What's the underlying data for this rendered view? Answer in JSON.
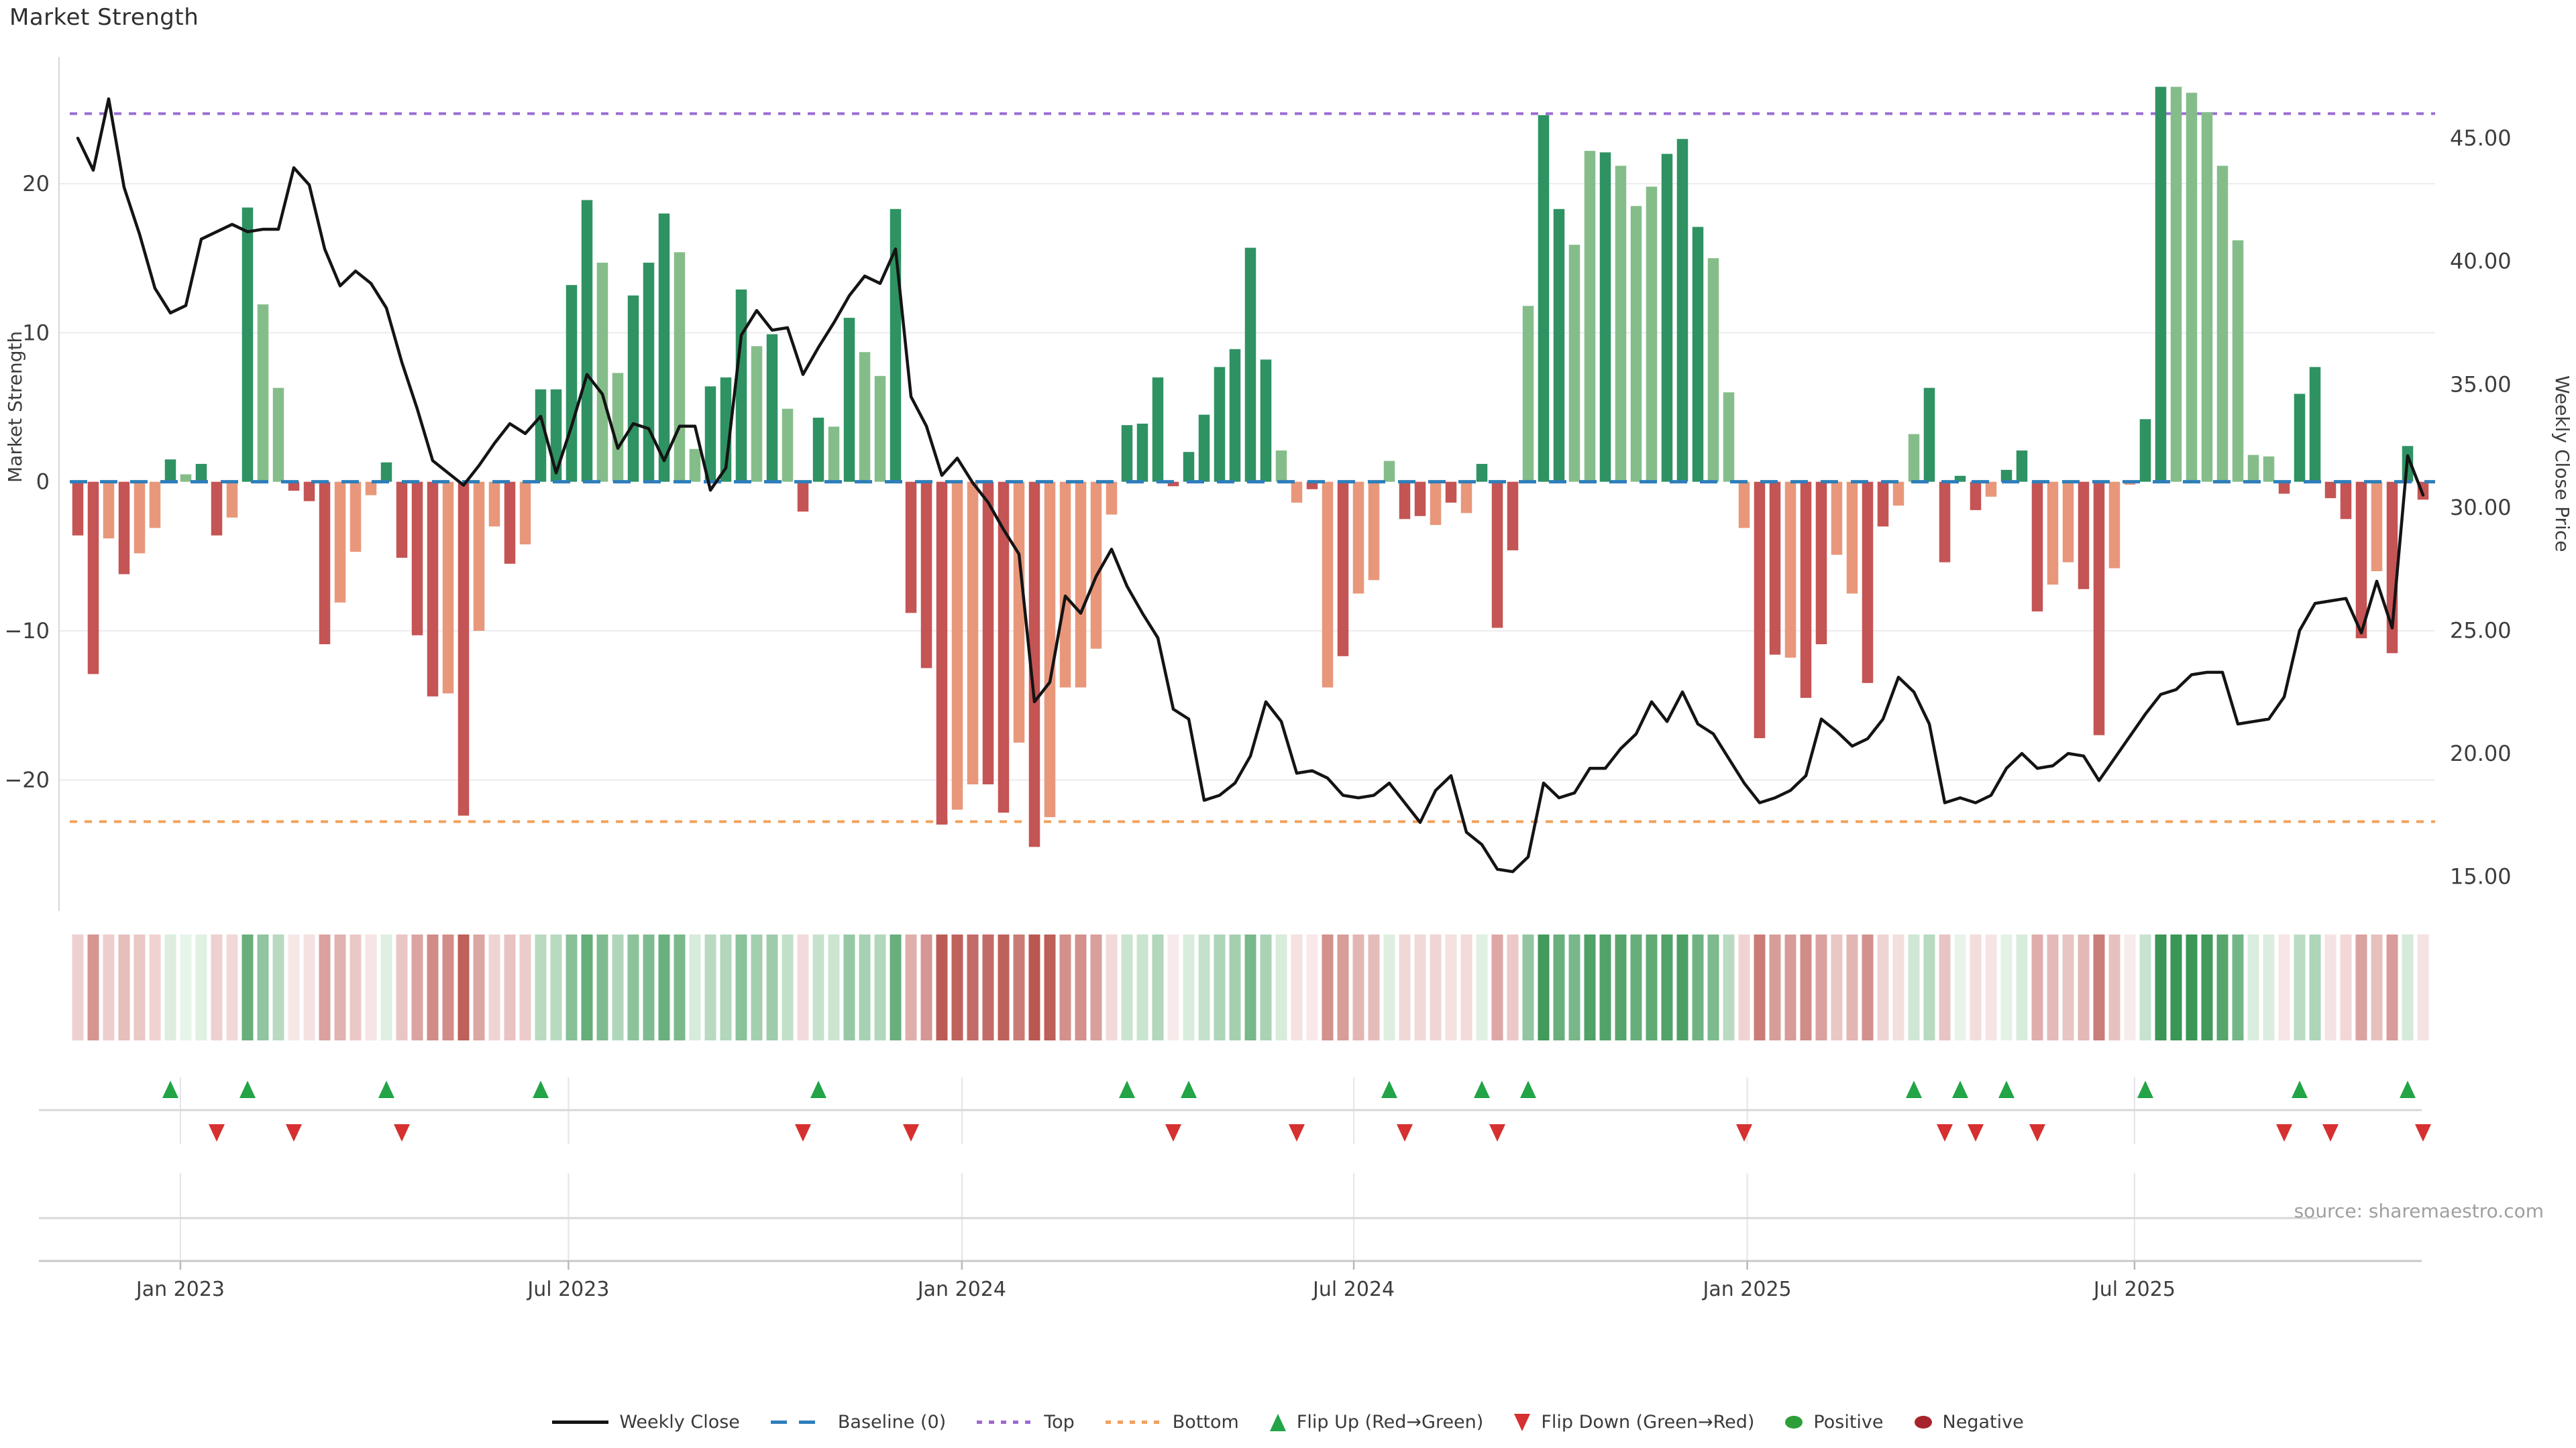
{
  "title": "Market Strength",
  "source": "source: sharemaestro.com",
  "left_axis": {
    "label": "Market Strength",
    "ticks": [
      "20",
      "10",
      "0",
      "−10",
      "−20"
    ],
    "tick_values": [
      20,
      10,
      0,
      -10,
      -20
    ]
  },
  "right_axis": {
    "label": "Weekly Close Price",
    "ticks": [
      "45.00",
      "40.00",
      "35.00",
      "30.00",
      "25.00",
      "20.00",
      "15.00"
    ],
    "tick_values": [
      45,
      40,
      35,
      30,
      25,
      20,
      15
    ]
  },
  "legend": {
    "items": [
      {
        "label": "Weekly Close",
        "swatch": "solid-black-line"
      },
      {
        "label": "Baseline (0)",
        "swatch": "blue-dashed-line"
      },
      {
        "label": "Top",
        "swatch": "purple-dotted-line"
      },
      {
        "label": "Bottom",
        "swatch": "orange-dotted-line"
      },
      {
        "label": "Flip Up (Red→Green)",
        "swatch": "green-up-triangle"
      },
      {
        "label": "Flip Down (Green→Red)",
        "swatch": "red-down-triangle"
      },
      {
        "label": "Positive",
        "swatch": "green-dot"
      },
      {
        "label": "Negative",
        "swatch": "dark-red-dot"
      }
    ]
  },
  "colors": {
    "bar_positive_dark": "#2F9262",
    "bar_positive_light": "#85BD8A",
    "bar_negative_dark": "#C55454",
    "bar_negative_light": "#E8977B",
    "weekly_close_line": "#141414",
    "baseline": "#2E7EBB",
    "top_line": "#9B6BD3",
    "bottom_line": "#F2A15B",
    "flip_up": "#22A447",
    "flip_down": "#D63030",
    "positive_dot": "#2E9E3A",
    "negative_dot": "#A6252C",
    "heat_pos_max": "#3A9655",
    "heat_pos_min": "#EDF7EE",
    "heat_neg_max": "#BB5751",
    "heat_neg_min": "#FAEEEE",
    "gridline": "#ECECF1",
    "spine": "#D5D5DC",
    "panel_line": "#D8D8D8",
    "axis_line": "#C9C9C9",
    "tick_text": "#3d3d3d"
  },
  "chart_data": {
    "type": "bar",
    "title": "Market Strength",
    "ylabel": "Market Strength",
    "y2label": "Weekly Close Price",
    "strength_axis_range": [
      -28.8,
      28.5
    ],
    "price_axis_range": [
      13.6,
      48.3
    ],
    "baseline_value": 0,
    "top_value": 24.7,
    "bottom_value": -22.8,
    "x_ticks": [
      {
        "label": "Jan 2023",
        "week": 6.65
      },
      {
        "label": "Jul 2023",
        "week": 31.8
      },
      {
        "label": "Jan 2024",
        "week": 57.3
      },
      {
        "label": "Jul 2024",
        "week": 82.7
      },
      {
        "label": "Jan 2025",
        "week": 108.2
      },
      {
        "label": "Jul 2025",
        "week": 133.3
      }
    ],
    "series": [
      {
        "name": "Market Strength",
        "type": "bar",
        "values": [
          -3.6,
          -12.9,
          -3.8,
          -6.2,
          -4.8,
          -3.1,
          1.5,
          0.5,
          1.2,
          -3.6,
          -2.4,
          18.4,
          11.9,
          6.3,
          -0.6,
          -1.3,
          -10.9,
          -8.1,
          -4.7,
          -0.9,
          1.3,
          -5.1,
          -10.3,
          -14.4,
          -14.2,
          -22.4,
          -10.0,
          -3.0,
          -5.5,
          -4.2,
          6.2,
          6.2,
          13.2,
          18.9,
          14.7,
          7.3,
          12.5,
          14.7,
          18.0,
          15.4,
          2.2,
          6.4,
          7.0,
          12.9,
          9.1,
          9.9,
          4.9,
          -2.0,
          4.3,
          3.7,
          11.0,
          8.7,
          7.1,
          18.3,
          -8.8,
          -12.5,
          -23.0,
          -22.0,
          -20.3,
          -20.3,
          -22.2,
          -17.5,
          -24.5,
          -22.5,
          -13.8,
          -13.8,
          -11.2,
          -2.2,
          3.8,
          3.9,
          7.0,
          -0.3,
          2.0,
          4.5,
          7.7,
          8.9,
          15.7,
          8.2,
          2.1,
          -1.4,
          -0.5,
          -13.8,
          -11.7,
          -7.5,
          -6.6,
          1.4,
          -2.5,
          -2.3,
          -2.9,
          -1.4,
          -2.1,
          1.2,
          -9.8,
          -4.6,
          11.8,
          24.6,
          18.3,
          15.9,
          22.2,
          22.1,
          21.2,
          18.5,
          19.8,
          22.0,
          23.0,
          17.1,
          15.0,
          6.0,
          -3.1,
          -17.2,
          -11.6,
          -11.8,
          -14.5,
          -10.9,
          -4.9,
          -7.5,
          -13.5,
          -3.0,
          -1.6,
          3.2,
          6.3,
          -5.4,
          0.4,
          -1.9,
          -1.0,
          0.8,
          2.1,
          -8.7,
          -6.9,
          -5.4,
          -7.2,
          -17.0,
          -5.8,
          -0.2,
          4.2,
          26.5,
          26.5,
          26.1,
          24.8,
          21.2,
          16.2,
          1.8,
          1.7,
          -0.8,
          5.9,
          7.7,
          -1.1,
          -2.5,
          -10.5,
          -6.0,
          -11.5,
          2.4,
          -1.2
        ],
        "shades": "ddldlldlddldlldddlllddddldlldlddddlldddlldddldlddldllddddllddldlllllddddddddddlldldllldd ldldddlddlldllldddllldd lddllddllddddldddllddllddlllllllddddddlddd"
      },
      {
        "name": "Weekly Close",
        "type": "line",
        "values": [
          45.0,
          43.7,
          46.6,
          43.0,
          41.1,
          38.9,
          37.9,
          38.2,
          40.9,
          41.2,
          41.5,
          41.2,
          41.3,
          41.3,
          43.8,
          43.1,
          40.5,
          39.0,
          39.6,
          39.1,
          38.1,
          35.9,
          34.0,
          31.9,
          31.4,
          30.9,
          31.7,
          32.6,
          33.4,
          33.0,
          33.7,
          31.4,
          33.3,
          35.4,
          34.6,
          32.4,
          33.4,
          33.2,
          31.9,
          33.3,
          33.3,
          30.7,
          31.6,
          37.0,
          38.0,
          37.2,
          37.3,
          35.4,
          36.5,
          37.5,
          38.6,
          39.4,
          39.1,
          40.5,
          34.5,
          33.3,
          31.3,
          32.0,
          31.0,
          30.2,
          29.1,
          28.1,
          22.1,
          22.9,
          26.4,
          25.7,
          27.2,
          28.3,
          26.8,
          25.7,
          24.7,
          21.8,
          21.4,
          18.1,
          18.3,
          18.8,
          19.9,
          22.1,
          21.3,
          19.2,
          19.3,
          19.0,
          18.3,
          18.2,
          18.3,
          18.8,
          18.0,
          17.2,
          18.5,
          19.1,
          16.8,
          16.3,
          15.3,
          15.2,
          15.8,
          18.8,
          18.2,
          18.4,
          19.4,
          19.4,
          20.2,
          20.8,
          22.1,
          21.3,
          22.5,
          21.2,
          20.8,
          19.8,
          18.8,
          18.0,
          18.2,
          18.5,
          19.1,
          21.4,
          20.9,
          20.3,
          20.6,
          21.4,
          23.1,
          22.5,
          21.2,
          18.0,
          18.2,
          18.0,
          18.3,
          19.4,
          20.0,
          19.4,
          19.5,
          20.0,
          19.9,
          18.9,
          19.8,
          20.7,
          21.6,
          22.4,
          22.6,
          23.2,
          23.3,
          23.3,
          21.2,
          21.3,
          21.4,
          22.3,
          25.0,
          26.1,
          26.2,
          26.3,
          24.9,
          27.0,
          25.1,
          32.1,
          30.5
        ]
      }
    ],
    "flip_up_weeks": [
      6,
      11,
      20,
      30,
      48,
      68,
      72,
      85,
      91,
      94,
      119,
      122,
      125,
      134,
      144,
      151
    ],
    "flip_down_weeks": [
      9,
      14,
      21,
      47,
      54,
      71,
      79,
      86,
      92,
      108,
      121,
      123,
      127,
      143,
      146,
      152
    ],
    "legend_position": "bottom-center",
    "grid": "horizontal-only"
  }
}
